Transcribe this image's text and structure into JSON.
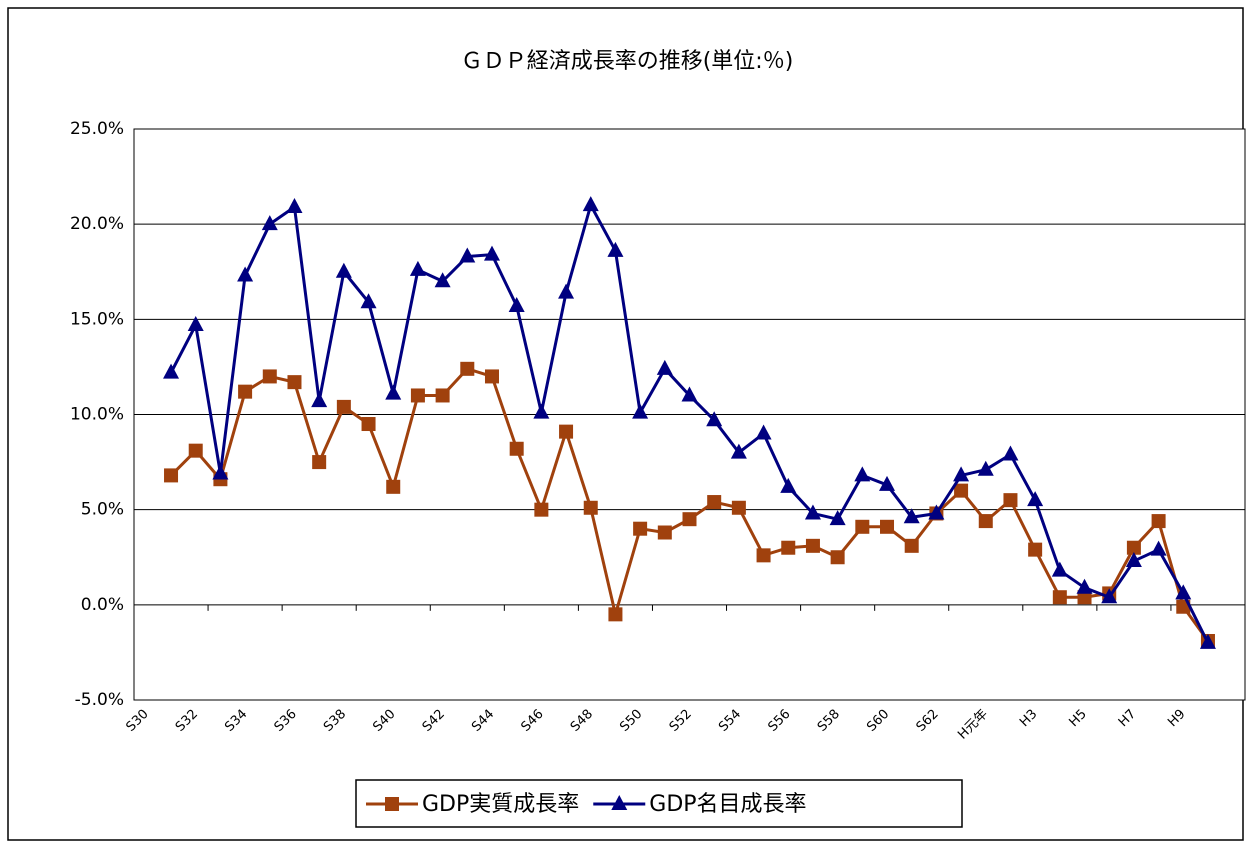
{
  "chart_data": {
    "type": "line",
    "title": "ＧＤＰ経済成長率の推移(単位:％)",
    "categories": [
      "S30",
      null,
      "S32",
      null,
      "S34",
      null,
      "S36",
      null,
      "S38",
      null,
      "S40",
      null,
      "S42",
      null,
      "S44",
      null,
      "S46",
      null,
      "S48",
      null,
      "S50",
      null,
      "S52",
      null,
      "S54",
      null,
      "S56",
      null,
      "S58",
      null,
      "S60",
      null,
      "S62",
      null,
      "H元年",
      null,
      "H3",
      null,
      "H5",
      null,
      "H7",
      null,
      "H9",
      null,
      null
    ],
    "series": [
      {
        "name": "GDP実質成長率",
        "color": "#a0410d",
        "marker": "square",
        "values": [
          null,
          6.8,
          8.1,
          6.6,
          11.2,
          12.0,
          11.7,
          7.5,
          10.4,
          9.5,
          6.2,
          11.0,
          11.0,
          12.4,
          12.0,
          8.2,
          5.0,
          9.1,
          5.1,
          -0.5,
          4.0,
          3.8,
          4.5,
          5.4,
          5.1,
          2.6,
          3.0,
          3.1,
          2.5,
          4.1,
          4.1,
          3.1,
          4.8,
          6.0,
          4.4,
          5.5,
          2.9,
          0.4,
          0.4,
          0.6,
          3.0,
          4.4,
          -0.1,
          -1.9,
          null
        ]
      },
      {
        "name": "GDP名目成長率",
        "color": "#000080",
        "marker": "triangle",
        "values": [
          null,
          12.2,
          14.7,
          6.9,
          17.3,
          20.0,
          20.9,
          10.7,
          17.5,
          15.9,
          11.1,
          17.6,
          17.0,
          18.3,
          18.4,
          15.7,
          10.1,
          16.4,
          21.0,
          18.6,
          10.1,
          12.4,
          11.0,
          9.7,
          8.0,
          9.0,
          6.2,
          4.8,
          4.5,
          6.8,
          6.3,
          4.6,
          4.8,
          6.8,
          7.1,
          7.9,
          5.5,
          1.8,
          0.9,
          0.4,
          2.3,
          2.9,
          0.6,
          -2.0,
          null
        ]
      }
    ],
    "ylim": [
      -5,
      25
    ],
    "yticks": [
      {
        "value": -5,
        "label": "-5.0%"
      },
      {
        "value": 0,
        "label": "0.0%"
      },
      {
        "value": 5,
        "label": "5.0%"
      },
      {
        "value": 10,
        "label": "10.0%"
      },
      {
        "value": 15,
        "label": "15.0%"
      },
      {
        "value": 20,
        "label": "20.0%"
      },
      {
        "value": 25,
        "label": "25.0%"
      }
    ],
    "grid": true,
    "legend": "bottom"
  }
}
